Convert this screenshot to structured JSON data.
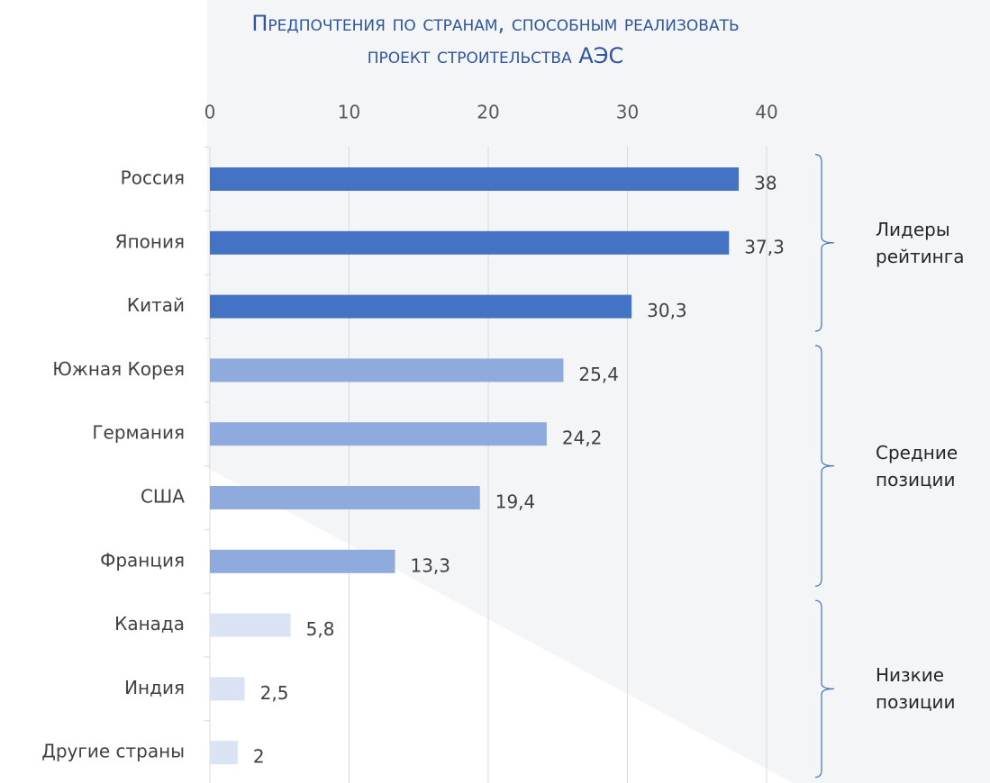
{
  "chart_data": {
    "type": "barh",
    "title": "Предпочтения по странам, способным реализовать проект строительства АЭС",
    "categories": [
      "Россия",
      "Япония",
      "Китай",
      "Южная Корея",
      "Германия",
      "США",
      "Франция",
      "Канада",
      "Индия",
      "Другие страны"
    ],
    "values": [
      38,
      37.3,
      30.3,
      25.4,
      24.2,
      19.4,
      13.3,
      5.8,
      2.5,
      2
    ],
    "value_labels": [
      "38",
      "37,3",
      "30,3",
      "25,4",
      "24,2",
      "19,4",
      "13,3",
      "5,8",
      "2,5",
      "2"
    ],
    "colors": [
      "#4472c4",
      "#4472c4",
      "#4472c4",
      "#8faadc",
      "#8faadc",
      "#8faadc",
      "#8faadc",
      "#dae3f3",
      "#dae3f3",
      "#dae3f3"
    ],
    "annotations": [
      "Лидеры рейтинга",
      "Средние позиции",
      "Низкие позиции"
    ],
    "xlim": [
      0,
      40
    ],
    "xticks": [
      0,
      10,
      20,
      30,
      40
    ],
    "grid": true
  }
}
